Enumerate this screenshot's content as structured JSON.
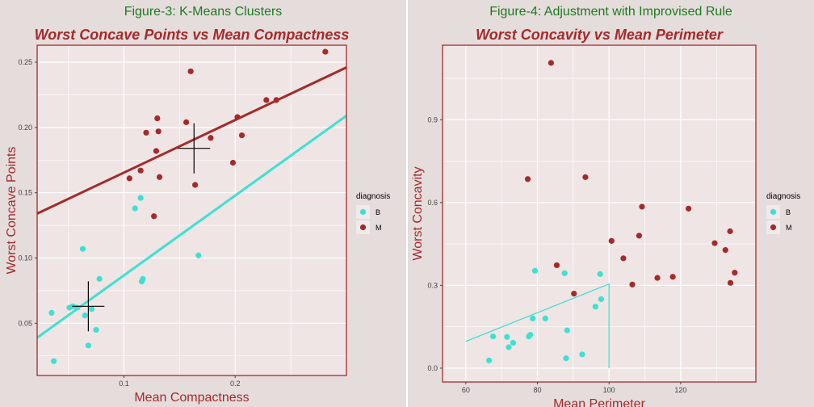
{
  "left": {
    "figure_title": "Figure-3: K-Means Clusters",
    "chart_data": {
      "type": "scatter",
      "title": "Worst Concave Points vs Mean Compactness",
      "xlabel": "Mean Compactness",
      "ylabel": "Worst Concave Points",
      "xlim": [
        0.022,
        0.3
      ],
      "ylim": [
        0.01,
        0.263
      ],
      "xticks": [
        0.1,
        0.2
      ],
      "xtick_labels": [
        "0.1",
        "0.2"
      ],
      "yticks": [
        0.05,
        0.1,
        0.15,
        0.2,
        0.25
      ],
      "ytick_labels": [
        "0.05",
        "0.10",
        "0.15",
        "0.20",
        "0.25"
      ],
      "grid": true,
      "legend": {
        "title": "diagnosis",
        "entries": [
          "B",
          "M"
        ],
        "position": "right"
      },
      "colors": {
        "B": "#40e0d0",
        "M": "#a52a2a"
      },
      "series": [
        {
          "name": "B",
          "points": [
            [
              0.035,
              0.058
            ],
            [
              0.037,
              0.021
            ],
            [
              0.051,
              0.062
            ],
            [
              0.054,
              0.063
            ],
            [
              0.058,
              0.062
            ],
            [
              0.063,
              0.107
            ],
            [
              0.065,
              0.056
            ],
            [
              0.068,
              0.033
            ],
            [
              0.071,
              0.061
            ],
            [
              0.075,
              0.045
            ],
            [
              0.078,
              0.084
            ],
            [
              0.11,
              0.138
            ],
            [
              0.115,
              0.146
            ],
            [
              0.116,
              0.082
            ],
            [
              0.117,
              0.084
            ],
            [
              0.167,
              0.102
            ]
          ]
        },
        {
          "name": "M",
          "points": [
            [
              0.105,
              0.161
            ],
            [
              0.115,
              0.167
            ],
            [
              0.12,
              0.196
            ],
            [
              0.127,
              0.132
            ],
            [
              0.129,
              0.182
            ],
            [
              0.13,
              0.207
            ],
            [
              0.131,
              0.197
            ],
            [
              0.132,
              0.162
            ],
            [
              0.156,
              0.204
            ],
            [
              0.16,
              0.243
            ],
            [
              0.164,
              0.156
            ],
            [
              0.178,
              0.192
            ],
            [
              0.198,
              0.173
            ],
            [
              0.202,
              0.208
            ],
            [
              0.206,
              0.194
            ],
            [
              0.228,
              0.221
            ],
            [
              0.237,
              0.221
            ],
            [
              0.281,
              0.258
            ]
          ]
        }
      ],
      "lines": [
        {
          "name": "B",
          "from": [
            0.022,
            0.039
          ],
          "to": [
            0.3,
            0.209
          ]
        },
        {
          "name": "M",
          "from": [
            0.022,
            0.134
          ],
          "to": [
            0.3,
            0.246
          ]
        }
      ],
      "centers": [
        {
          "x": 0.068,
          "y": 0.063
        },
        {
          "x": 0.163,
          "y": 0.184
        }
      ]
    }
  },
  "right": {
    "figure_title": "Figure-4: Adjustment with Improvised Rule",
    "chart_data": {
      "type": "scatter",
      "title": "Worst Concavity vs Mean Perimeter",
      "xlabel": "Mean Perimeter",
      "ylabel": "Worst Concavity",
      "xlim": [
        53.5,
        141
      ],
      "ylim": [
        -0.05,
        1.17
      ],
      "xticks": [
        60,
        80,
        100,
        120
      ],
      "xtick_labels": [
        "60",
        "80",
        "100",
        "120"
      ],
      "yticks": [
        0.0,
        0.3,
        0.6,
        0.9
      ],
      "ytick_labels": [
        "0.0",
        "0.3",
        "0.6",
        "0.9"
      ],
      "grid": true,
      "legend": {
        "title": "diagnosis",
        "entries": [
          "B",
          "M"
        ],
        "position": "right"
      },
      "colors": {
        "B": "#40e0d0",
        "M": "#a52a2a"
      },
      "series": [
        {
          "name": "B",
          "points": [
            [
              66.5,
              0.028
            ],
            [
              67.6,
              0.115
            ],
            [
              71.5,
              0.113
            ],
            [
              72.0,
              0.076
            ],
            [
              73.2,
              0.092
            ],
            [
              77.6,
              0.115
            ],
            [
              78.0,
              0.121
            ],
            [
              78.7,
              0.18
            ],
            [
              79.3,
              0.353
            ],
            [
              82.2,
              0.18
            ],
            [
              87.6,
              0.344
            ],
            [
              88.0,
              0.036
            ],
            [
              88.3,
              0.137
            ],
            [
              92.5,
              0.05
            ],
            [
              96.2,
              0.223
            ],
            [
              97.5,
              0.341
            ],
            [
              97.8,
              0.25
            ]
          ]
        },
        {
          "name": "M",
          "points": [
            [
              77.3,
              0.685
            ],
            [
              83.8,
              1.106
            ],
            [
              85.4,
              0.373
            ],
            [
              90.2,
              0.27
            ],
            [
              93.4,
              0.692
            ],
            [
              100.7,
              0.461
            ],
            [
              104.0,
              0.398
            ],
            [
              106.5,
              0.303
            ],
            [
              108.4,
              0.48
            ],
            [
              109.2,
              0.585
            ],
            [
              113.5,
              0.327
            ],
            [
              117.8,
              0.331
            ],
            [
              122.2,
              0.578
            ],
            [
              129.5,
              0.453
            ],
            [
              132.5,
              0.428
            ],
            [
              133.8,
              0.496
            ],
            [
              133.9,
              0.309
            ],
            [
              135.1,
              0.346
            ]
          ]
        }
      ],
      "rule_line": [
        [
          60,
          0.097
        ],
        [
          100,
          0.305
        ],
        [
          100,
          0.0
        ]
      ]
    }
  }
}
